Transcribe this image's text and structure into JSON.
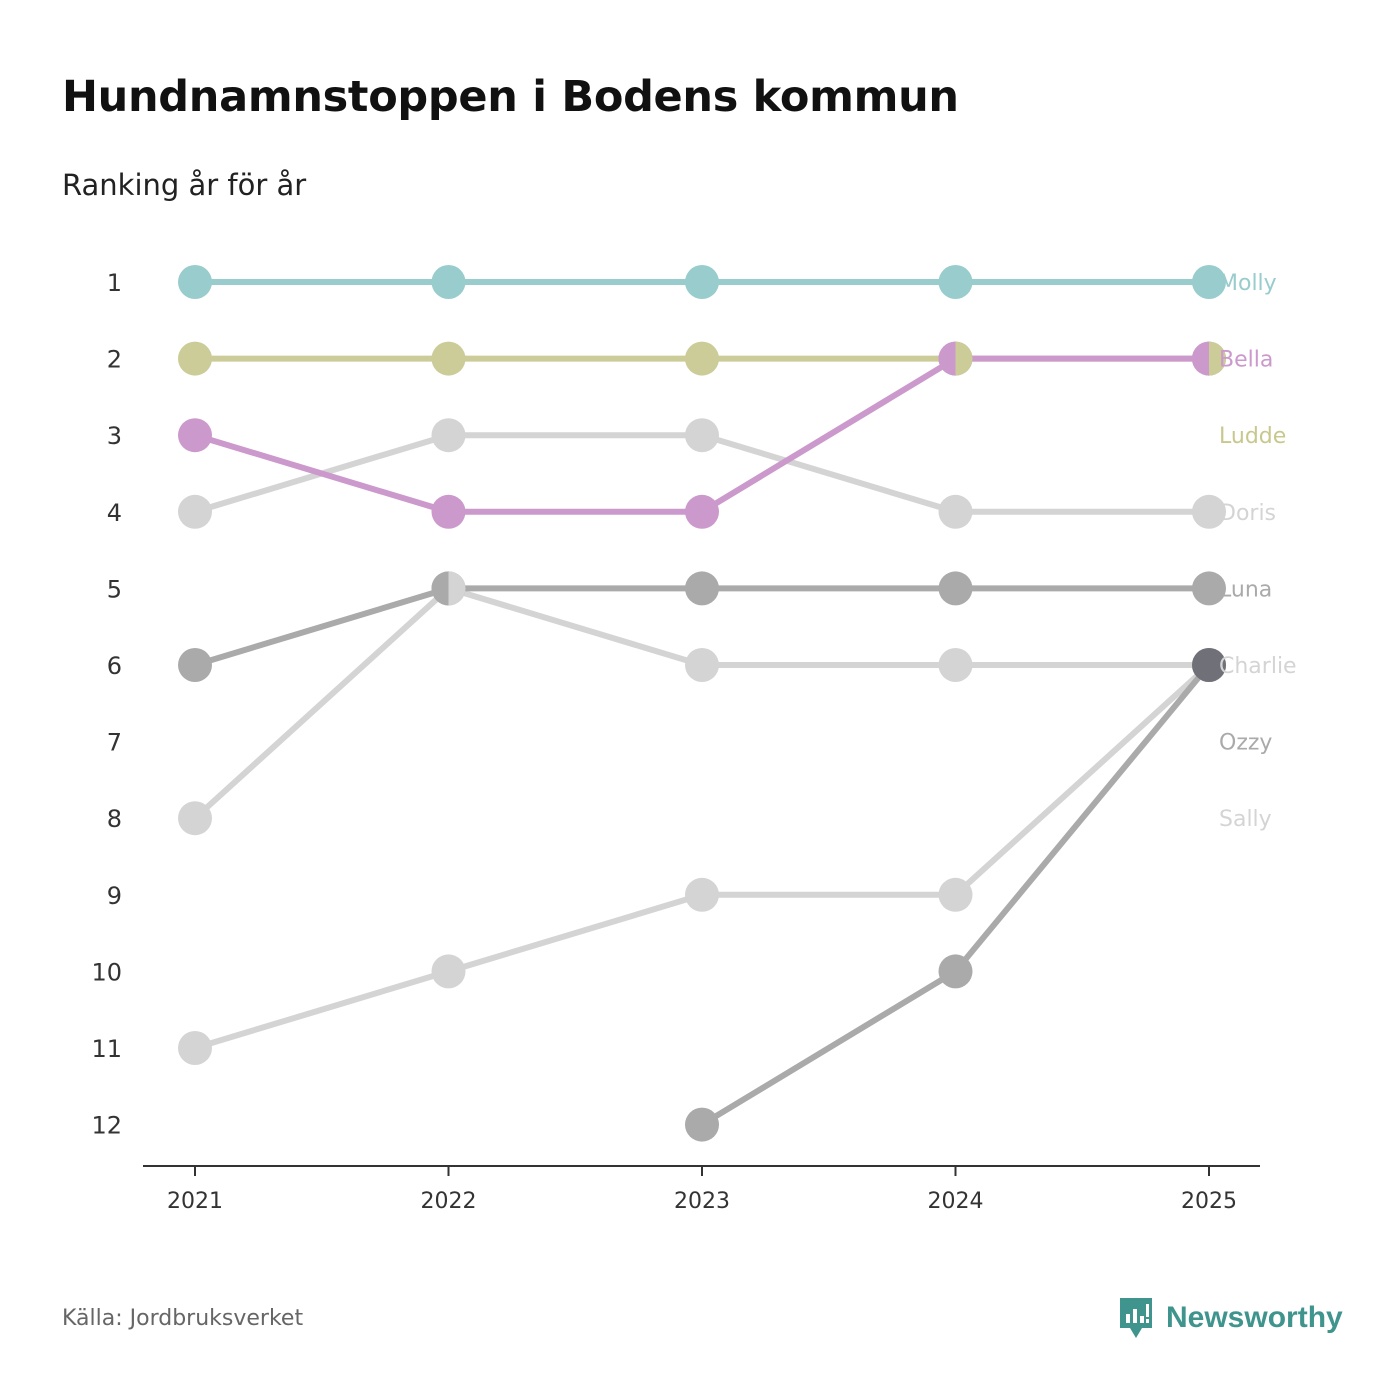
{
  "header": {
    "title": "Hundnamnstoppen i Bodens kommun",
    "subtitle": "Ranking år för år"
  },
  "footer": {
    "source": "Källa: Jordbruksverket",
    "brand": "Newsworthy"
  },
  "colors": {
    "molly": "#99cccc",
    "bella": "#cc99cc",
    "ludde": "#cccc99",
    "gray_dark": "#aaaaaa",
    "gray_light": "#d4d4d4",
    "overlap_dot": "#707078",
    "axis": "#333333",
    "brand": "#3f948e"
  },
  "chart_data": {
    "type": "line",
    "subtype": "bump",
    "title": "Hundnamnstoppen i Bodens kommun",
    "subtitle": "Ranking år för år",
    "xlabel": "",
    "ylabel": "",
    "categories": [
      "2021",
      "2022",
      "2023",
      "2024",
      "2025"
    ],
    "y_ticks": [
      1,
      2,
      3,
      4,
      5,
      6,
      7,
      8,
      9,
      10,
      11,
      12
    ],
    "ylim": [
      1,
      12
    ],
    "y_inverted": true,
    "series": [
      {
        "name": "Sally",
        "color": "#d4d4d4",
        "label_color": "#d4d4d4",
        "values": [
          11,
          10,
          9,
          9,
          6
        ]
      },
      {
        "name": "Charlie",
        "color": "#d4d4d4",
        "label_color": "#d4d4d4",
        "values": [
          8,
          5,
          6,
          6,
          6
        ]
      },
      {
        "name": "Doris",
        "color": "#d4d4d4",
        "label_color": "#d4d4d4",
        "values": [
          4,
          3,
          3,
          4,
          4
        ]
      },
      {
        "name": "Ozzy",
        "color": "#aaaaaa",
        "label_color": "#aaaaaa",
        "values": [
          null,
          null,
          12,
          10,
          6
        ]
      },
      {
        "name": "Luna",
        "color": "#aaaaaa",
        "label_color": "#aaaaaa",
        "values": [
          6,
          5,
          5,
          5,
          5
        ]
      },
      {
        "name": "Ludde",
        "color": "#cccc99",
        "label_color": "#c8c88e",
        "values": [
          2,
          2,
          2,
          2,
          2
        ]
      },
      {
        "name": "Bella",
        "color": "#cc99cc",
        "label_color": "#cc99cc",
        "values": [
          3,
          4,
          4,
          2,
          2
        ]
      },
      {
        "name": "Molly",
        "color": "#99cccc",
        "label_color": "#99cccc",
        "values": [
          1,
          1,
          1,
          1,
          1
        ]
      }
    ],
    "end_labels": [
      "Molly",
      "Bella",
      "Ludde",
      "Doris",
      "Luna",
      "Charlie",
      "Ozzy",
      "Sally"
    ],
    "split_markers": [
      {
        "year": "2022",
        "rank": 5,
        "left": "Luna",
        "right": "Charlie"
      },
      {
        "year": "2024",
        "rank": 2,
        "left": "Bella",
        "right": "Ludde"
      },
      {
        "year": "2025",
        "rank": 2,
        "left": "Bella",
        "right": "Ludde"
      }
    ],
    "overlap_markers": [
      {
        "year": "2025",
        "rank": 6,
        "names": [
          "Charlie",
          "Ozzy",
          "Sally"
        ],
        "color": "#707078"
      }
    ]
  }
}
